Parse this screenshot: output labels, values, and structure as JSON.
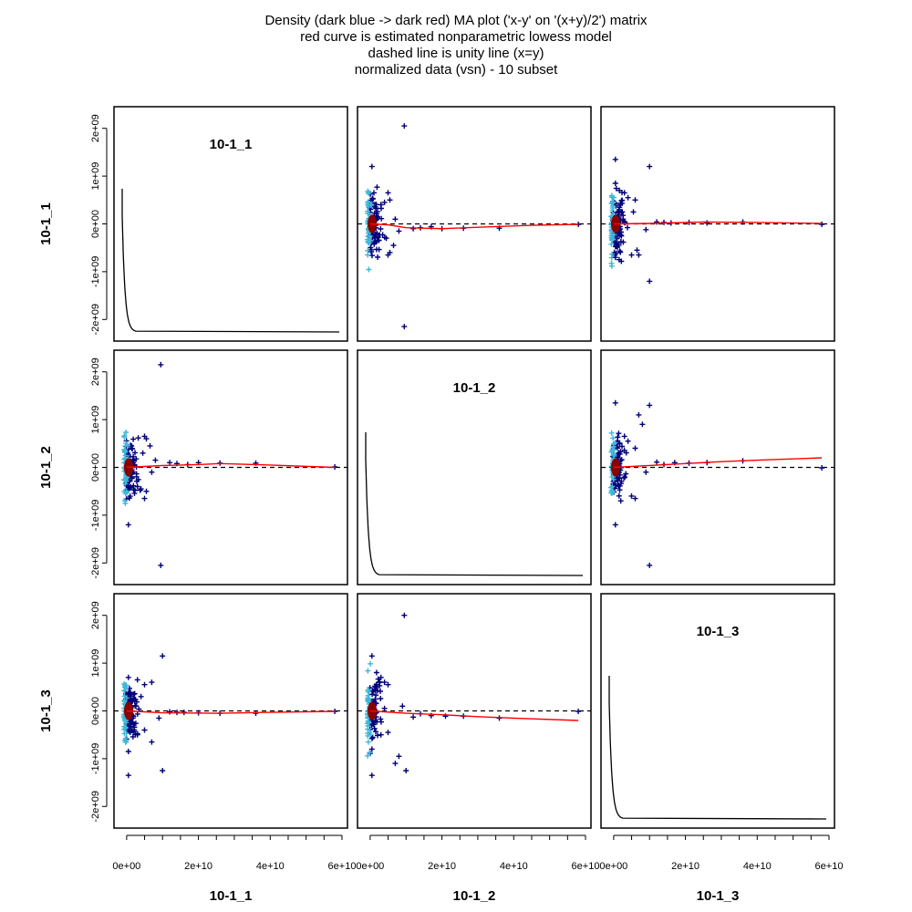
{
  "chart_data": {
    "type": "scatter",
    "title_lines": [
      "Density (dark blue -> dark red) MA plot ('x-y' on '(x+y)/2') matrix",
      "red curve is estimated nonparametric lowess model",
      "dashed line is unity line (x=y)",
      "normalized data (vsn) - 10 subset"
    ],
    "samples": [
      "10-1_1",
      "10-1_2",
      "10-1_3"
    ],
    "x_ticks": [
      0,
      20000000000,
      40000000000,
      60000000000
    ],
    "x_tick_labels": [
      "0e+00",
      "2e+10",
      "4e+10",
      "6e+10"
    ],
    "y_ticks": [
      -2000000000,
      -1000000000,
      0,
      1000000000,
      2000000000
    ],
    "y_tick_labels": [
      "-2e+09",
      "-1e+09",
      "0e+00",
      "1e+09",
      "2e+09"
    ],
    "xlim": [
      -2000000000,
      60000000000
    ],
    "ylim": [
      -2300000000,
      2300000000
    ],
    "colors": {
      "points_dark": "#00007a",
      "points_light": "#3fb7d8",
      "dense_core": "#8b0000",
      "lowess": "#ff0000",
      "unity": "#000000",
      "frame": "#000000"
    },
    "panels": [
      {
        "row": 0,
        "col": 0,
        "kind": "density",
        "label": "10-1_1"
      },
      {
        "row": 0,
        "col": 1,
        "kind": "ma",
        "outliers": [
          [
            9500000000.0,
            2050000000.0
          ],
          [
            500000000,
            1200000000.0
          ],
          [
            9500000000.0,
            -2150000000.0
          ],
          [
            5000000000.0,
            -650000000
          ],
          [
            5500000000.0,
            -600000000
          ],
          [
            6500000000.0,
            -450000000
          ],
          [
            4000000000.0,
            450000000
          ],
          [
            5000000000.0,
            650000000
          ],
          [
            5500000000.0,
            500000000
          ],
          [
            3000000000.0,
            400000000
          ],
          [
            4500000000.0,
            -300000000
          ],
          [
            8000000000.0,
            -150000000
          ],
          [
            12000000000.0,
            -100000000
          ],
          [
            14000000000.0,
            -80000000
          ],
          [
            17000000000.0,
            -60000000
          ],
          [
            20000000000.0,
            -100000000
          ],
          [
            26000000000.0,
            -90000000
          ],
          [
            36000000000.0,
            -90000000
          ],
          [
            58000000000.0,
            -10000000
          ],
          [
            7000000000.0,
            100000000
          ]
        ],
        "lowess": [
          [
            0,
            0
          ],
          [
            5000000000.0,
            -20000000
          ],
          [
            10000000000.0,
            -80000000
          ],
          [
            20000000000.0,
            -100000000
          ],
          [
            30000000000.0,
            -70000000
          ],
          [
            45000000000.0,
            -30000000
          ],
          [
            58000000000.0,
            -10000000
          ]
        ]
      },
      {
        "row": 0,
        "col": 2,
        "kind": "ma",
        "outliers": [
          [
            500000000,
            1350000000.0
          ],
          [
            10000000000.0,
            1200000000.0
          ],
          [
            500000000,
            850000000
          ],
          [
            10000000000.0,
            -1200000000.0
          ],
          [
            500000000,
            -700000000
          ],
          [
            5000000000.0,
            -650000000
          ],
          [
            6500000000.0,
            -550000000
          ],
          [
            7000000000.0,
            -650000000
          ],
          [
            3000000000.0,
            650000000
          ],
          [
            4000000000.0,
            550000000
          ],
          [
            6000000000.0,
            500000000
          ],
          [
            5500000000.0,
            250000000
          ],
          [
            12000000000.0,
            40000000
          ],
          [
            14000000000.0,
            30000000
          ],
          [
            16000000000.0,
            20000000
          ],
          [
            21000000000.0,
            30000000
          ],
          [
            26000000000.0,
            20000000
          ],
          [
            36000000000.0,
            40000000
          ],
          [
            58000000000.0,
            -10000000
          ],
          [
            9000000000.0,
            -120000000
          ]
        ],
        "lowess": [
          [
            0,
            0
          ],
          [
            10000000000.0,
            10000000
          ],
          [
            25000000000.0,
            40000000
          ],
          [
            40000000000.0,
            30000000
          ],
          [
            58000000000.0,
            10000000
          ]
        ]
      },
      {
        "row": 1,
        "col": 0,
        "kind": "ma",
        "outliers": [
          [
            9500000000.0,
            2150000000.0
          ],
          [
            500000000,
            -1200000000.0
          ],
          [
            9500000000.0,
            -2050000000.0
          ],
          [
            5000000000.0,
            650000000
          ],
          [
            5500000000.0,
            600000000
          ],
          [
            6500000000.0,
            450000000
          ],
          [
            4000000000.0,
            -450000000
          ],
          [
            5000000000.0,
            -650000000
          ],
          [
            5500000000.0,
            -500000000
          ],
          [
            3000000000.0,
            -400000000
          ],
          [
            4500000000.0,
            300000000
          ],
          [
            8000000000.0,
            150000000
          ],
          [
            12000000000.0,
            100000000
          ],
          [
            14000000000.0,
            80000000
          ],
          [
            17000000000.0,
            60000000
          ],
          [
            20000000000.0,
            100000000
          ],
          [
            26000000000.0,
            90000000
          ],
          [
            36000000000.0,
            90000000
          ],
          [
            58000000000.0,
            10000000
          ],
          [
            7000000000.0,
            -100000000
          ]
        ],
        "lowess": [
          [
            0,
            0
          ],
          [
            5000000000.0,
            20000000
          ],
          [
            10000000000.0,
            40000000
          ],
          [
            20000000000.0,
            60000000
          ],
          [
            26000000000.0,
            80000000
          ],
          [
            40000000000.0,
            50000000
          ],
          [
            58000000000.0,
            0
          ]
        ]
      },
      {
        "row": 1,
        "col": 1,
        "kind": "density",
        "label": "10-1_2"
      },
      {
        "row": 1,
        "col": 2,
        "kind": "ma",
        "outliers": [
          [
            500000000,
            1350000000.0
          ],
          [
            10000000000.0,
            1300000000.0
          ],
          [
            500000000,
            -1200000000.0
          ],
          [
            10000000000.0,
            -2050000000.0
          ],
          [
            7000000000.0,
            1100000000.0
          ],
          [
            8000000000.0,
            900000000
          ],
          [
            5000000000.0,
            -600000000
          ],
          [
            6000000000.0,
            -650000000
          ],
          [
            3000000000.0,
            650000000
          ],
          [
            4000000000.0,
            550000000
          ],
          [
            6000000000.0,
            400000000
          ],
          [
            12000000000.0,
            110000000
          ],
          [
            14000000000.0,
            60000000
          ],
          [
            17000000000.0,
            100000000
          ],
          [
            21000000000.0,
            90000000
          ],
          [
            26000000000.0,
            100000000
          ],
          [
            36000000000.0,
            140000000
          ],
          [
            58000000000.0,
            -10000000
          ],
          [
            9000000000.0,
            -100000000
          ],
          [
            2000000000.0,
            -700000000
          ]
        ],
        "lowess": [
          [
            0,
            0
          ],
          [
            10000000000.0,
            40000000
          ],
          [
            20000000000.0,
            80000000
          ],
          [
            30000000000.0,
            120000000
          ],
          [
            40000000000.0,
            150000000
          ],
          [
            58000000000.0,
            200000000
          ]
        ]
      },
      {
        "row": 2,
        "col": 0,
        "kind": "ma",
        "outliers": [
          [
            10000000000.0,
            1150000000.0
          ],
          [
            500000000,
            700000000
          ],
          [
            500000000,
            -1350000000.0
          ],
          [
            10000000000.0,
            -1250000000.0
          ],
          [
            3000000000.0,
            650000000
          ],
          [
            5000000000.0,
            550000000
          ],
          [
            7000000000.0,
            600000000
          ],
          [
            500000000,
            -850000000
          ],
          [
            7000000000.0,
            -650000000
          ],
          [
            3000000000.0,
            -500000000
          ],
          [
            5000000000.0,
            -400000000
          ],
          [
            9000000000.0,
            -150000000
          ],
          [
            12000000000.0,
            -20000000
          ],
          [
            14000000000.0,
            -30000000
          ],
          [
            16000000000.0,
            -30000000
          ],
          [
            20000000000.0,
            -40000000
          ],
          [
            26000000000.0,
            -50000000
          ],
          [
            36000000000.0,
            -50000000
          ],
          [
            58000000000.0,
            -10000000
          ],
          [
            4000000000.0,
            300000000
          ]
        ],
        "lowess": [
          [
            0,
            0
          ],
          [
            10000000000.0,
            -40000000
          ],
          [
            25000000000.0,
            -50000000
          ],
          [
            40000000000.0,
            -30000000
          ],
          [
            58000000000.0,
            -10000000
          ]
        ]
      },
      {
        "row": 2,
        "col": 1,
        "kind": "ma",
        "outliers": [
          [
            9500000000.0,
            2000000000.0
          ],
          [
            500000000,
            1150000000.0
          ],
          [
            500000000,
            -1350000000.0
          ],
          [
            10000000000.0,
            -1250000000.0
          ],
          [
            7000000000.0,
            -1100000000.0
          ],
          [
            8000000000.0,
            -950000000
          ],
          [
            4000000000.0,
            600000000
          ],
          [
            5000000000.0,
            550000000
          ],
          [
            3000000000.0,
            700000000
          ],
          [
            500000000,
            -800000000
          ],
          [
            3000000000.0,
            -500000000
          ],
          [
            5000000000.0,
            -450000000
          ],
          [
            12000000000.0,
            -130000000
          ],
          [
            14000000000.0,
            -60000000
          ],
          [
            17000000000.0,
            -100000000
          ],
          [
            21000000000.0,
            -110000000
          ],
          [
            26000000000.0,
            -110000000
          ],
          [
            36000000000.0,
            -150000000
          ],
          [
            58000000000.0,
            -10000000
          ],
          [
            9000000000.0,
            100000000
          ]
        ],
        "lowess": [
          [
            0,
            0
          ],
          [
            10000000000.0,
            -50000000
          ],
          [
            20000000000.0,
            -80000000
          ],
          [
            30000000000.0,
            -120000000
          ],
          [
            40000000000.0,
            -150000000
          ],
          [
            58000000000.0,
            -200000000
          ]
        ]
      },
      {
        "row": 2,
        "col": 2,
        "kind": "density",
        "label": "10-1_3"
      }
    ]
  }
}
